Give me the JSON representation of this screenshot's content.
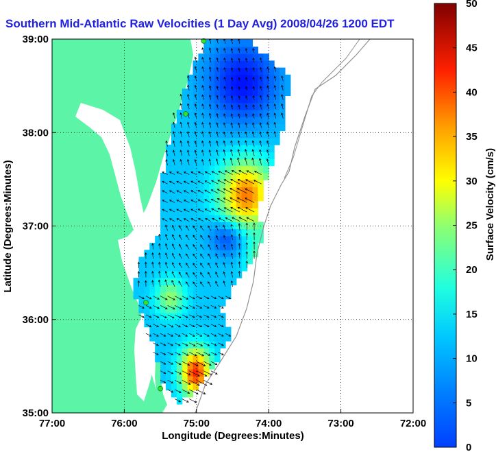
{
  "chart_data": {
    "type": "vector-field-map",
    "title": "Southern Mid-Atlantic Raw Velocities (1 Day Avg) 2008/04/26 1200 EDT",
    "xlabel": "Longitude (Degrees:Minutes)",
    "ylabel": "Latitude (Degrees:Minutes)",
    "xlim": [
      -77,
      -72
    ],
    "ylim": [
      35,
      39
    ],
    "x_ticks": [
      -77,
      -76,
      -75,
      -74,
      -73,
      -72
    ],
    "x_tick_labels": [
      "77:00",
      "76:00",
      "75:00",
      "74:00",
      "73:00",
      "72:00"
    ],
    "y_ticks": [
      35,
      36,
      37,
      38,
      39
    ],
    "y_tick_labels": [
      "35:00",
      "36:00",
      "37:00",
      "38:00",
      "39:00"
    ],
    "grid": true,
    "colorbar": {
      "label": "Surface Velocity (cm/s)",
      "range": [
        0,
        50
      ],
      "ticks": [
        0,
        5,
        10,
        15,
        20,
        25,
        30,
        35,
        40,
        45,
        50
      ],
      "colormap": "jet"
    },
    "land_color": "#5cf5a8",
    "station_color": "#33e033",
    "stations": [
      {
        "lon": -74.9,
        "lat": 38.98
      },
      {
        "lon": -75.15,
        "lat": 38.2
      },
      {
        "lon": -75.7,
        "lat": 36.18
      },
      {
        "lon": -75.5,
        "lat": 35.26
      }
    ]
  }
}
